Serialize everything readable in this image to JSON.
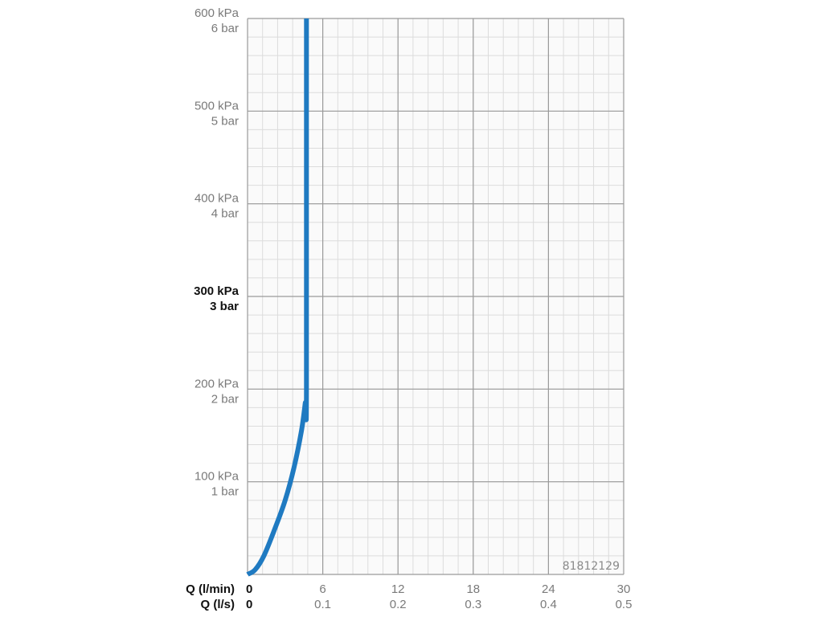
{
  "chart_data": {
    "type": "line",
    "title": "",
    "code": "81812129",
    "x_axis": {
      "label_primary": "Q (l/min)",
      "label_secondary": "Q (l/s)",
      "range": [
        0,
        30
      ],
      "ticks": [
        {
          "value": 0,
          "primary": "0",
          "secondary": "0"
        },
        {
          "value": 6,
          "primary": "6",
          "secondary": "0.1"
        },
        {
          "value": 12,
          "primary": "12",
          "secondary": "0.2"
        },
        {
          "value": 18,
          "primary": "18",
          "secondary": "0.3"
        },
        {
          "value": 24,
          "primary": "24",
          "secondary": "0.4"
        },
        {
          "value": 30,
          "primary": "30",
          "secondary": "0.5"
        }
      ],
      "minor_step": 1.2
    },
    "y_axis": {
      "range": [
        0,
        600
      ],
      "unit_primary": "kPa",
      "unit_secondary": "bar",
      "ticks": [
        {
          "value": 100,
          "primary": "100 kPa",
          "secondary": "1 bar",
          "highlight": false
        },
        {
          "value": 200,
          "primary": "200 kPa",
          "secondary": "2 bar",
          "highlight": false
        },
        {
          "value": 300,
          "primary": "300 kPa",
          "secondary": "3 bar",
          "highlight": true
        },
        {
          "value": 400,
          "primary": "400 kPa",
          "secondary": "4 bar",
          "highlight": false
        },
        {
          "value": 500,
          "primary": "500 kPa",
          "secondary": "5 bar",
          "highlight": false
        },
        {
          "value": 600,
          "primary": "600 kPa",
          "secondary": "6 bar",
          "highlight": false
        }
      ],
      "minor_step": 20
    },
    "grid": true,
    "series": [
      {
        "color": "#1f7ac1",
        "points": [
          {
            "x": 0,
            "y": 0
          },
          {
            "x": 0.6,
            "y": 5
          },
          {
            "x": 1.3,
            "y": 20
          },
          {
            "x": 2.2,
            "y": 50
          },
          {
            "x": 3.0,
            "y": 80
          },
          {
            "x": 3.7,
            "y": 115
          },
          {
            "x": 4.3,
            "y": 155
          },
          {
            "x": 4.6,
            "y": 185
          },
          {
            "x": 4.7,
            "y": 200
          },
          {
            "x": 4.7,
            "y": 600
          }
        ]
      }
    ]
  }
}
